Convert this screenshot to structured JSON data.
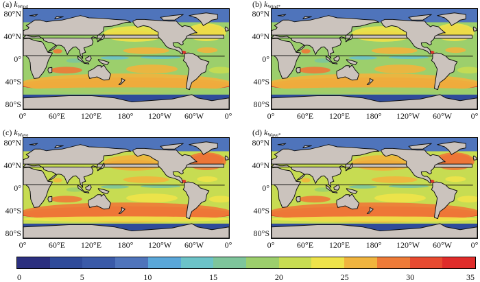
{
  "panels": [
    {
      "id": "a",
      "label": "(a)",
      "symbol": "k",
      "subscript": "Wind"
    },
    {
      "id": "b",
      "label": "(b)",
      "symbol": "k",
      "subscript": "Wind*"
    },
    {
      "id": "c",
      "label": "(c)",
      "symbol": "k",
      "subscript": "Wave"
    },
    {
      "id": "d",
      "label": "(d)",
      "symbol": "k",
      "subscript": "Wave*"
    }
  ],
  "lat_ticks": [
    "80°N",
    "40°N",
    "0°",
    "40°S",
    "80°S"
  ],
  "lon_ticks": [
    "0°",
    "60°E",
    "120°E",
    "180°",
    "120°W",
    "60°W",
    "0°"
  ],
  "colorbar": {
    "ticks": [
      "0",
      "5",
      "10",
      "15",
      "20",
      "25",
      "30",
      "35"
    ],
    "colors": [
      "#2b2f7f",
      "#2f4b9a",
      "#3a5aa8",
      "#4f74bb",
      "#5aa7d9",
      "#6cc3c8",
      "#7ec59b",
      "#9ccf6c",
      "#c7dc52",
      "#eee34a",
      "#f0b43e",
      "#ee7b38",
      "#e84a30",
      "#e02c2a"
    ]
  }
}
